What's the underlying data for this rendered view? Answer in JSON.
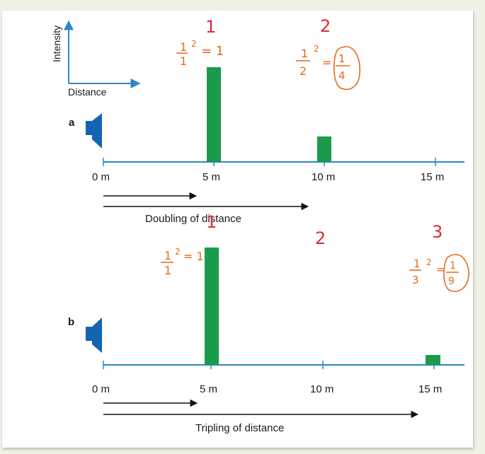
{
  "legend": {
    "y_label": "Intensity",
    "x_label": "Distance"
  },
  "panels": [
    {
      "letter": "a",
      "ticks": [
        "0 m",
        "5 m",
        "10 m",
        "15 m"
      ],
      "arrow_caption": "Doubling of distance",
      "bars": [
        {
          "distance_m": 5,
          "intensity": 1
        },
        {
          "distance_m": 10,
          "intensity": 0.25
        }
      ],
      "annotations": {
        "num_1": "1",
        "num_2": "2",
        "eq1": {
          "num": "1",
          "den": "1",
          "exp": "2",
          "res": "= 1"
        },
        "eq2": {
          "num": "1",
          "den": "2",
          "exp": "2",
          "eq": "=",
          "res_num": "1",
          "res_den": "4"
        }
      }
    },
    {
      "letter": "b",
      "ticks": [
        "0 m",
        "5 m",
        "10 m",
        "15 m"
      ],
      "arrow_caption": "Tripling of distance",
      "bars": [
        {
          "distance_m": 5,
          "intensity": 1
        },
        {
          "distance_m": 15,
          "intensity": 0.111
        }
      ],
      "annotations": {
        "num_1": "1",
        "num_2": "2",
        "num_3": "3",
        "eq1": {
          "num": "1",
          "den": "1",
          "exp": "2",
          "res": "= 1"
        },
        "eq3": {
          "num": "1",
          "den": "3",
          "exp": "2",
          "eq": "=",
          "res_num": "1",
          "res_den": "9"
        }
      }
    }
  ],
  "colors": {
    "axis": "#2e86c8",
    "bar": "#1a9b4b",
    "speaker": "#1464b4",
    "hand_orange": "#e36a1a",
    "hand_red": "#e02a3a"
  }
}
